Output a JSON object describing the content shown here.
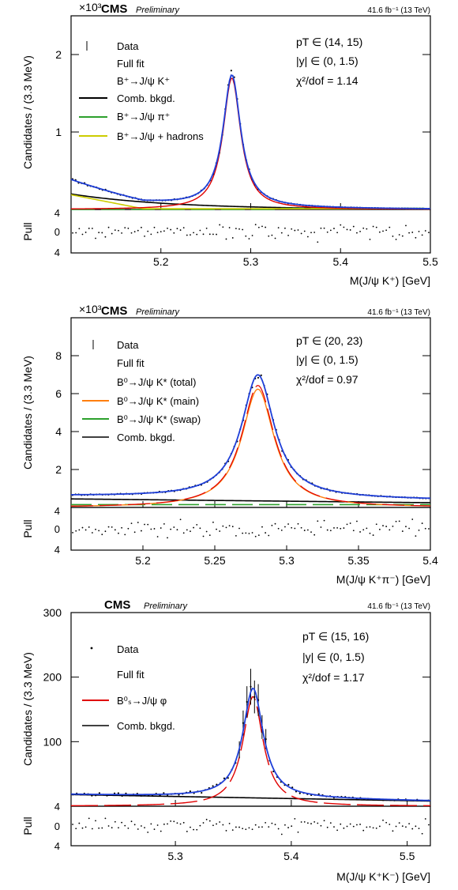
{
  "chart_data": [
    {
      "type": "line",
      "cms_label": "CMS",
      "preliminary_label": "Preliminary",
      "lumi_label": "41.6 fb⁻¹ (13 TeV)",
      "y_multiplier": "×10³",
      "ylabel": "Candidates / (3.3 MeV)",
      "xlabel": "M(J/ψ K⁺) [GeV]",
      "pull_label": "Pull",
      "xlim": [
        5.1,
        5.5
      ],
      "ylim": [
        0,
        2.5
      ],
      "x_ticks": [
        5.2,
        5.3,
        5.4,
        5.5
      ],
      "x_tick_labels": [
        "5.2",
        "5.3",
        "5.4",
        "5.5"
      ],
      "y_ticks": [
        1,
        2
      ],
      "y_tick_labels": [
        "1",
        "2"
      ],
      "pull_ticks": [
        "4",
        "0",
        "4"
      ],
      "legend": [
        {
          "label": "Data",
          "style": "marker"
        },
        {
          "label": "Full fit",
          "style": "none"
        },
        {
          "label": "B⁺→J/ψ K⁺",
          "style": "none"
        },
        {
          "label": "Comb. bkgd.",
          "style": "solid",
          "color": "#000000"
        },
        {
          "label": "B⁺→J/ψ π⁺",
          "style": "solid",
          "color": "#2ca02c"
        },
        {
          "label": "B⁺→J/ψ + hadrons",
          "style": "solid",
          "color": "#cccc00"
        }
      ],
      "info": [
        "pT ∈ (14, 15)",
        "|y| ∈ (0, 1.5)",
        "χ²/dof = 1.14"
      ],
      "peak": {
        "mean": 5.279,
        "height": 1.7,
        "sigma": 0.0095
      },
      "components": {
        "comb_start": 0.2,
        "comb_end": 0.0,
        "comb_slope": 9.0,
        "hadron_amp": 0.18,
        "hadron_edge": 5.18,
        "pi_level": 0.015,
        "pi_from": 5.33
      }
    },
    {
      "type": "line",
      "cms_label": "CMS",
      "preliminary_label": "Preliminary",
      "lumi_label": "41.6 fb⁻¹ (13 TeV)",
      "y_multiplier": "×10³",
      "ylabel": "Candidates / (3.3 MeV)",
      "xlabel": "M(J/ψ K⁺π⁻) [GeV]",
      "pull_label": "Pull",
      "xlim": [
        5.15,
        5.4
      ],
      "ylim": [
        0,
        10
      ],
      "x_ticks": [
        5.2,
        5.25,
        5.3,
        5.35,
        5.4
      ],
      "x_tick_labels": [
        "5.2",
        "5.25",
        "5.3",
        "5.35",
        "5.4"
      ],
      "y_ticks": [
        2,
        4,
        6,
        8
      ],
      "y_tick_labels": [
        "2",
        "4",
        "6",
        "8"
      ],
      "pull_ticks": [
        "4",
        "0",
        "4"
      ],
      "legend": [
        {
          "label": "Data",
          "style": "marker"
        },
        {
          "label": "Full fit",
          "style": "none"
        },
        {
          "label": "B⁰→J/ψ K* (total)",
          "style": "none"
        },
        {
          "label": "B⁰→J/ψ K* (main)",
          "style": "solid",
          "color": "#ff7f0e"
        },
        {
          "label": "B⁰→J/ψ K* (swap)",
          "style": "solid",
          "color": "#2ca02c"
        },
        {
          "label": "Comb. bkgd.",
          "style": "solid",
          "color": "#000000"
        }
      ],
      "info": [
        "pT ∈ (20, 23)",
        "|y| ∈ (0, 1.5)",
        "χ²/dof = 0.97"
      ],
      "peak": {
        "mean": 5.28,
        "height": 6.5,
        "sigma": 0.011
      },
      "components": {
        "comb_start": 0.45,
        "comb_end": 0.25,
        "swap_level": 0.15
      }
    },
    {
      "type": "line",
      "cms_label": "CMS",
      "preliminary_label": "Preliminary",
      "lumi_label": "41.6 fb⁻¹ (13 TeV)",
      "ylabel": "Candidates / (3.3 MeV)",
      "xlabel": "M(J/ψ K⁺K⁻) [GeV]",
      "pull_label": "Pull",
      "xlim": [
        5.21,
        5.52
      ],
      "ylim": [
        0,
        300
      ],
      "x_ticks": [
        5.3,
        5.4,
        5.5
      ],
      "x_tick_labels": [
        "5.3",
        "5.4",
        "5.5"
      ],
      "y_ticks": [
        100,
        200,
        300
      ],
      "y_tick_labels": [
        "100",
        "200",
        "300"
      ],
      "pull_ticks": [
        "4",
        "0",
        "4"
      ],
      "legend": [
        {
          "label": "Data",
          "style": "marker"
        },
        {
          "label": "Full fit",
          "style": "none"
        },
        {
          "label": "B⁰ₛ→J/ψ φ",
          "style": "solid",
          "color": "#e00000"
        },
        {
          "label": "Comb. bkgd.",
          "style": "solid",
          "color": "#000000"
        }
      ],
      "info": [
        "pT ∈ (15, 16)",
        "|y| ∈ (0, 1.5)",
        "χ²/dof = 1.17"
      ],
      "peak": {
        "mean": 5.367,
        "height": 170,
        "sigma": 0.0085
      },
      "components": {
        "comb_start": 18,
        "comb_end": 8
      }
    }
  ]
}
